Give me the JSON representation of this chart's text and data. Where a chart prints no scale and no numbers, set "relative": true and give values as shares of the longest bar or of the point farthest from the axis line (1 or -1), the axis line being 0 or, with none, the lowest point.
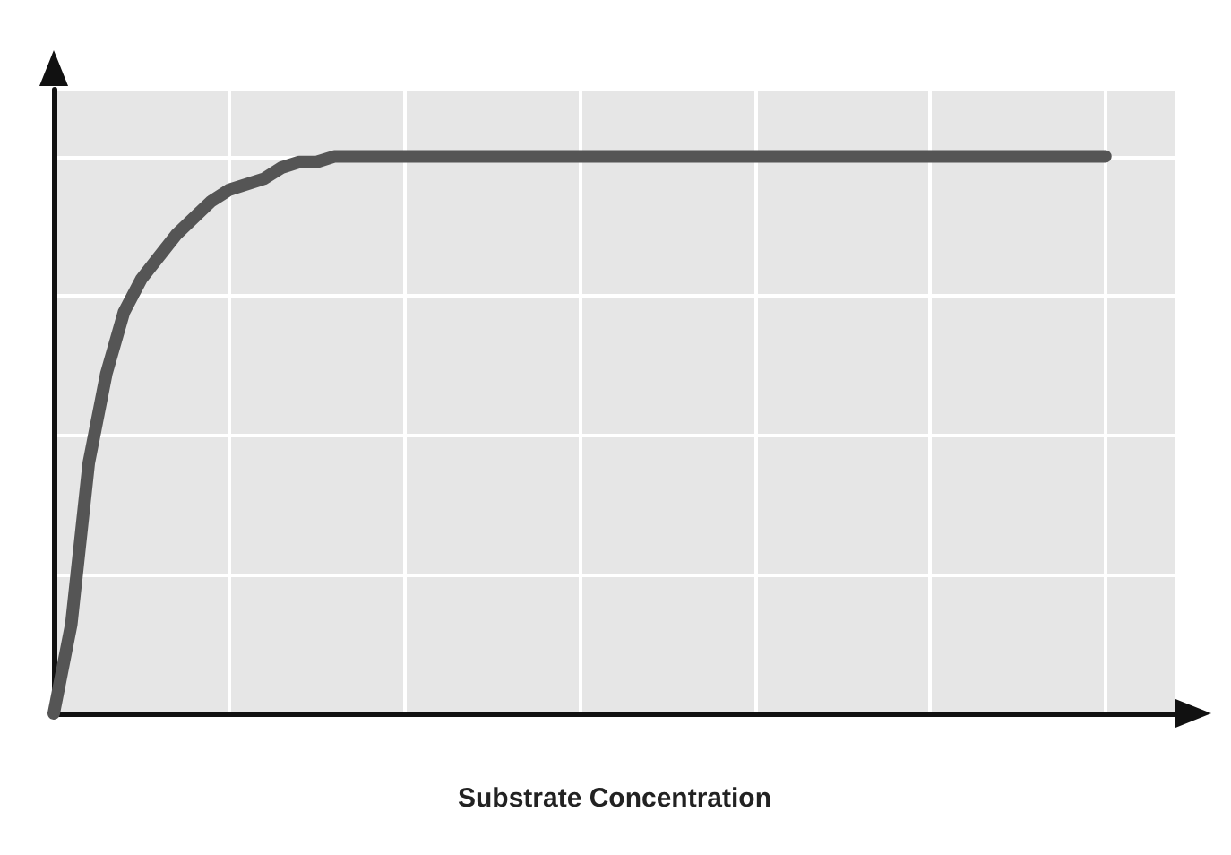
{
  "chart_data": {
    "type": "line",
    "xlabel": "Substrate Concentration",
    "relative": true,
    "tick_labels": false,
    "grid": true,
    "line_style": "solid",
    "categories": [
      null,
      null,
      null,
      null,
      null,
      null,
      null,
      null,
      null,
      null,
      null,
      null,
      null,
      null,
      null,
      null,
      null,
      null,
      null,
      null,
      null,
      null,
      null,
      null,
      null,
      null,
      null,
      null,
      null,
      null,
      null,
      null,
      null,
      null,
      null,
      null,
      null,
      null,
      null,
      null,
      null,
      null,
      null,
      null,
      null,
      null,
      null,
      null,
      null,
      null,
      null,
      null,
      null,
      null,
      null,
      null,
      null,
      null,
      null,
      null,
      null,
      null,
      null,
      null,
      null
    ],
    "series": [
      {
        "color": "#555555",
        "values": [
          0,
          0.16,
          0.45,
          0.61,
          0.72,
          0.78,
          0.82,
          0.86,
          0.89,
          0.92,
          0.94,
          0.95,
          0.96,
          0.98,
          0.99,
          0.99,
          1,
          1,
          1,
          1,
          1,
          1,
          1,
          1,
          1,
          1,
          1,
          1,
          1,
          1,
          1,
          1,
          1,
          1,
          1,
          1,
          1,
          1,
          1,
          1,
          1,
          1,
          1,
          1,
          1,
          1,
          1,
          1,
          1,
          1,
          1,
          1,
          1,
          1,
          1,
          1,
          1,
          1,
          1,
          1,
          1,
          null,
          null,
          null,
          null
        ]
      }
    ]
  }
}
